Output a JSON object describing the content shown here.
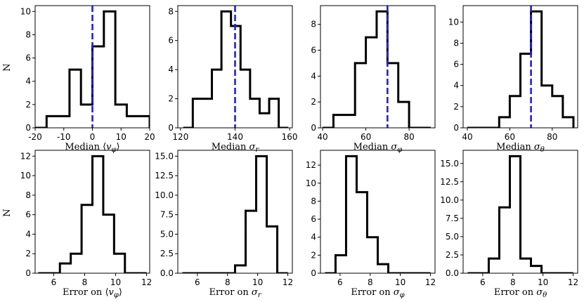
{
  "figure": {
    "ylabel": "N"
  },
  "chart_data": [
    {
      "type": "histogram",
      "xlabel": "Median ⟨v_φ⟩",
      "xlabel_main": "Median ⟨",
      "xlabel_var": "v",
      "xlabel_sub": "φ",
      "xlabel_close": "⟩",
      "ylabel": "N",
      "xlim": [
        -20,
        20
      ],
      "ylim": [
        0,
        10.5
      ],
      "xticks": [
        -20,
        -10,
        0,
        10,
        20
      ],
      "yticks": [
        0,
        2,
        4,
        6,
        8,
        10
      ],
      "bin_edges": [
        -20,
        -16,
        -12,
        -8,
        -4,
        0,
        4,
        8,
        12,
        16,
        20
      ],
      "counts": [
        0,
        1,
        1,
        5,
        2,
        7,
        10,
        2,
        1,
        1
      ],
      "vline": 0
    },
    {
      "type": "histogram",
      "xlabel": "Median σ_r",
      "xlabel_main": "Median ",
      "xlabel_var": "σ",
      "xlabel_sub": "r",
      "xlabel_close": "",
      "ylabel": "",
      "xlim": [
        119,
        161
      ],
      "ylim": [
        0,
        8.4
      ],
      "xticks": [
        120,
        140,
        160
      ],
      "yticks": [
        0,
        2,
        4,
        6,
        8
      ],
      "bin_edges": [
        121,
        124.5,
        128,
        131.5,
        135,
        138.5,
        142,
        145.5,
        149,
        152.5,
        156,
        159.5
      ],
      "counts": [
        0,
        2,
        2,
        4,
        8,
        7,
        4,
        2,
        1,
        2,
        0
      ],
      "vline": 140
    },
    {
      "type": "histogram",
      "xlabel": "Median σ_φ",
      "xlabel_main": "Median ",
      "xlabel_var": "σ",
      "xlabel_sub": "φ",
      "xlabel_close": "",
      "ylabel": "",
      "xlim": [
        39,
        92
      ],
      "ylim": [
        0,
        9.45
      ],
      "xticks": [
        40,
        60,
        80
      ],
      "yticks": [
        0,
        2,
        4,
        6,
        8
      ],
      "bin_edges": [
        40,
        45,
        50,
        55,
        60,
        65,
        70,
        75,
        80,
        85,
        90
      ],
      "counts": [
        0,
        1,
        1,
        5,
        7,
        9,
        5,
        2,
        0,
        0
      ],
      "vline": 70
    },
    {
      "type": "histogram",
      "xlabel": "Median σ_θ",
      "xlabel_main": "Median ",
      "xlabel_var": "σ",
      "xlabel_sub": "θ",
      "xlabel_close": "",
      "ylabel": "",
      "xlim": [
        38,
        92
      ],
      "ylim": [
        0,
        11.55
      ],
      "xticks": [
        40,
        60,
        80
      ],
      "yticks": [
        0,
        2,
        4,
        6,
        8,
        10
      ],
      "bin_edges": [
        40,
        45,
        50,
        55,
        60,
        65,
        70,
        75,
        80,
        85,
        90
      ],
      "counts": [
        0,
        0,
        0,
        1,
        3,
        7,
        11,
        4,
        3,
        1
      ],
      "vline": 70
    },
    {
      "type": "histogram",
      "xlabel": "Error on ⟨v_φ⟩",
      "xlabel_main": "Error on ⟨",
      "xlabel_var": "v",
      "xlabel_sub": "φ",
      "xlabel_close": "⟩",
      "ylabel": "N",
      "xlim": [
        4.8,
        12.2
      ],
      "ylim": [
        0,
        12.6
      ],
      "xticks": [
        6,
        8,
        10,
        12
      ],
      "yticks": [
        0,
        2,
        4,
        6,
        8,
        10,
        12
      ],
      "bin_edges": [
        5,
        5.7,
        6.4,
        7.1,
        7.8,
        8.5,
        9.2,
        9.9,
        10.6,
        11.3,
        12
      ],
      "counts": [
        0,
        0,
        1,
        2,
        7,
        12,
        6,
        2,
        0,
        0
      ],
      "vline": null
    },
    {
      "type": "histogram",
      "xlabel": "Error on σ_r",
      "xlabel_main": "Error on ",
      "xlabel_var": "σ",
      "xlabel_sub": "r",
      "xlabel_close": "",
      "ylabel": "",
      "xlim": [
        4.7,
        12.3
      ],
      "ylim": [
        0,
        15.75
      ],
      "xticks": [
        6,
        8,
        10,
        12
      ],
      "yticks": [
        0,
        2.5,
        5.0,
        7.5,
        10.0,
        12.5,
        15.0
      ],
      "ytick_labels": [
        "0.0",
        "2.5",
        "5.0",
        "7.5",
        "10.0",
        "12.5",
        "15.0"
      ],
      "bin_edges": [
        5,
        5.7,
        6.4,
        7.1,
        7.8,
        8.5,
        9.2,
        9.9,
        10.6,
        11.3,
        12
      ],
      "counts": [
        0,
        0,
        0,
        0,
        0,
        1,
        8,
        15,
        6,
        0
      ],
      "vline": null
    },
    {
      "type": "histogram",
      "xlabel": "Error on σ_φ",
      "xlabel_main": "Error on ",
      "xlabel_var": "σ",
      "xlabel_sub": "φ",
      "xlabel_close": "",
      "ylabel": "",
      "xlim": [
        4.7,
        12.3
      ],
      "ylim": [
        0,
        13.65
      ],
      "xticks": [
        6,
        8,
        10,
        12
      ],
      "yticks": [
        0,
        2,
        4,
        6,
        8,
        10,
        12
      ],
      "bin_edges": [
        5,
        5.7,
        6.4,
        7.1,
        7.8,
        8.5,
        9.2,
        9.9,
        10.6,
        11.3,
        12
      ],
      "counts": [
        0,
        2,
        13,
        9,
        4,
        1,
        0,
        0,
        0,
        0
      ],
      "vline": null
    },
    {
      "type": "histogram",
      "xlabel": "Error on σ_θ",
      "xlabel_main": "Error on ",
      "xlabel_var": "σ",
      "xlabel_sub": "θ",
      "xlabel_close": "",
      "ylabel": "",
      "xlim": [
        4.7,
        12.3
      ],
      "ylim": [
        0,
        16.8
      ],
      "xticks": [
        6,
        8,
        10,
        12
      ],
      "yticks": [
        0,
        5,
        10,
        15
      ],
      "yticks_minor_labels": [
        0,
        2.5,
        5.0,
        7.5,
        10.0,
        12.5,
        15.0
      ],
      "ytick_labels": [
        "0.0",
        "2.5",
        "5.0",
        "7.5",
        "10.0",
        "12.5",
        "15.0"
      ],
      "bin_edges": [
        5,
        5.7,
        6.4,
        7.1,
        7.8,
        8.5,
        9.2,
        9.9,
        10.6,
        11.3,
        12
      ],
      "counts": [
        0,
        0,
        2,
        9,
        16,
        2,
        1,
        0,
        0,
        0
      ],
      "vline": null
    }
  ],
  "style": {
    "hist_color": "#000000",
    "vline_color": "#1f1fe6"
  }
}
